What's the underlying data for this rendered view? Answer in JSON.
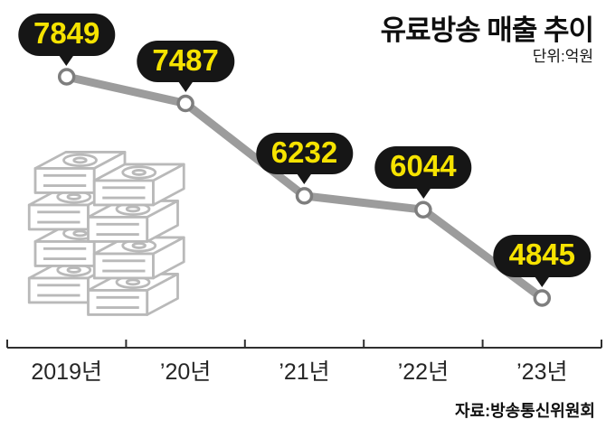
{
  "title": "유료방송 매출 추이",
  "unit_label": "단위:억원",
  "source_label": "자료:방송통신위원회",
  "chart_data": {
    "type": "line",
    "title": "유료방송 매출 추이",
    "unit": "억원",
    "categories": [
      "2019년",
      "’20년",
      "’21년",
      "’22년",
      "’23년"
    ],
    "values": [
      7849,
      7487,
      6232,
      6044,
      4845
    ],
    "ylim": [
      4845,
      7849
    ],
    "grid": false,
    "legend": "none",
    "source": "자료:방송통신위원회",
    "colors": {
      "line": "#9c9c9c",
      "marker_fill": "#ffffff",
      "marker_stroke": "#7e7e7e",
      "bubble_bg": "#161616",
      "bubble_text": "#f6e300",
      "axis": "#2f2f2f"
    }
  }
}
